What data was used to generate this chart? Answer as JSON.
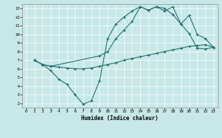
{
  "bg_color": "#c8e8e8",
  "line_color": "#1a6b6b",
  "grid_color": "#b0d8d8",
  "xlabel": "Humidex (Indice chaleur)",
  "xlim": [
    -0.5,
    23.5
  ],
  "ylim": [
    1.5,
    13.5
  ],
  "xticks": [
    0,
    1,
    2,
    3,
    4,
    5,
    6,
    7,
    8,
    9,
    10,
    11,
    12,
    13,
    14,
    15,
    16,
    17,
    18,
    19,
    20,
    21,
    22,
    23
  ],
  "yticks": [
    2,
    3,
    4,
    5,
    6,
    7,
    8,
    9,
    10,
    11,
    12,
    13
  ],
  "line1_x": [
    1,
    2,
    3,
    4,
    5,
    6,
    7,
    8,
    9,
    10,
    11,
    12,
    13,
    14,
    15,
    16,
    17,
    18,
    19,
    20,
    21,
    22,
    23
  ],
  "line1_y": [
    7.0,
    6.5,
    5.8,
    4.8,
    4.2,
    3.0,
    1.9,
    2.3,
    4.6,
    9.5,
    11.2,
    12.0,
    12.7,
    13.2,
    12.8,
    13.2,
    13.0,
    12.3,
    11.2,
    10.1,
    8.4,
    8.3,
    8.5
  ],
  "line2_x": [
    1,
    2,
    3,
    4,
    5,
    6,
    7,
    8,
    9,
    10,
    11,
    12,
    13,
    14,
    15,
    16,
    17,
    18,
    19,
    20,
    21,
    22,
    23
  ],
  "line2_y": [
    7.0,
    6.5,
    6.3,
    6.2,
    6.1,
    6.0,
    6.0,
    6.1,
    6.3,
    6.5,
    6.7,
    7.0,
    7.2,
    7.4,
    7.6,
    7.8,
    8.0,
    8.2,
    8.4,
    8.6,
    8.7,
    8.8,
    8.5
  ],
  "line3_x": [
    1,
    2,
    3,
    9,
    10,
    11,
    12,
    13,
    14,
    15,
    16,
    17,
    18,
    19,
    20,
    21,
    22,
    23
  ],
  "line3_y": [
    7.0,
    6.5,
    6.3,
    7.5,
    8.0,
    9.5,
    10.5,
    11.5,
    13.2,
    12.8,
    13.2,
    12.7,
    13.2,
    11.2,
    12.2,
    10.0,
    9.5,
    8.5
  ]
}
